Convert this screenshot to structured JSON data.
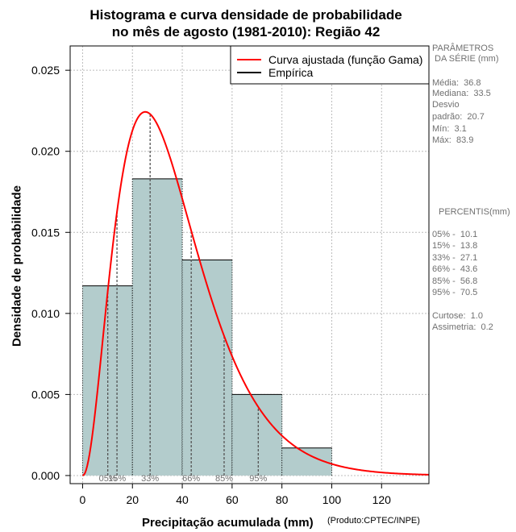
{
  "title": {
    "line1": "Histograma e curva densidade de probabilidade",
    "line2": "no mês de agosto (1981-2010): Região 42"
  },
  "chart_data": {
    "type": "bar",
    "title": "Histograma e curva densidade de probabilidade no mês de agosto (1981-2010): Região 42",
    "xlabel": "Precipitação acumulada (mm)",
    "ylabel": "Densidade de probabilidade",
    "xlim": [
      -5,
      139
    ],
    "ylim": [
      -0.0005,
      0.0265
    ],
    "grid": true,
    "x_ticks": [
      0,
      20,
      40,
      60,
      80,
      100,
      120
    ],
    "y_ticks": [
      0.0,
      0.005,
      0.01,
      0.015,
      0.02,
      0.025
    ],
    "y_tick_labels": [
      "0.000",
      "0.005",
      "0.010",
      "0.015",
      "0.020",
      "0.025"
    ],
    "histogram": {
      "bins": [
        [
          0,
          20
        ],
        [
          20,
          40
        ],
        [
          40,
          60
        ],
        [
          60,
          80
        ],
        [
          80,
          100
        ]
      ],
      "density": [
        0.0117,
        0.0183,
        0.0133,
        0.005,
        0.0017
      ],
      "color": "#b3cccc"
    },
    "curve": {
      "name": "Curva ajustada (função Gama)",
      "distribution": "gamma",
      "mean": 36.8,
      "sd": 20.7,
      "color": "#ff0000"
    },
    "legend": {
      "position": "top-right",
      "entries": [
        {
          "label": "Curva ajustada (função Gama)",
          "color": "#ff0000"
        },
        {
          "label": "Empírica",
          "color": "#000000"
        }
      ]
    },
    "percentile_lines": [
      {
        "label": "05%",
        "value": 10.1
      },
      {
        "label": "15%",
        "value": 13.8
      },
      {
        "label": "33%",
        "value": 27.1
      },
      {
        "label": "66%",
        "value": 43.6
      },
      {
        "label": "85%",
        "value": 56.8
      },
      {
        "label": "95%",
        "value": 70.5
      }
    ]
  },
  "sidebar": {
    "params_title_1": "PARÂMETROS",
    "params_title_2": " DA SÉRIE (mm)",
    "media": "Média:  36.8",
    "mediana": "Mediana:  33.5",
    "desvio_1": "Desvio",
    "desvio_2": "padrão:  20.7",
    "min": "Mín:  3.1",
    "max": "Máx:  83.9",
    "percentis_title": "PERCENTIS(mm)",
    "p05": "05% -  10.1",
    "p15": "15% -  13.8",
    "p33": "33% -  27.1",
    "p66": "66% -  43.6",
    "p85": "85% -  56.8",
    "p95": "95% -  70.5",
    "curtose": "Curtose:  1.0",
    "assimetria": "Assimetria:  0.2"
  },
  "credit": "(Produto:CPTEC/INPE)"
}
